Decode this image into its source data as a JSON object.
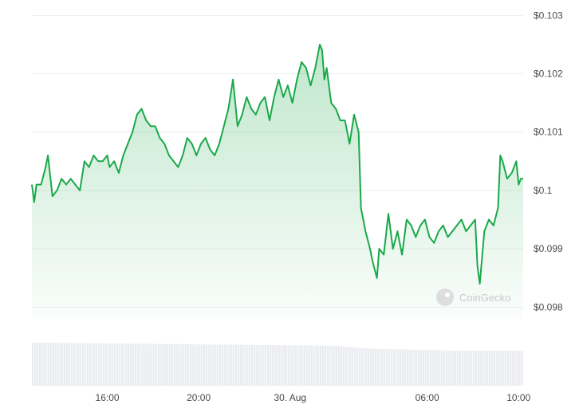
{
  "watermark": "CoinGecko",
  "chart_data": {
    "type": "area",
    "title": "",
    "xlabel": "",
    "ylabel": "",
    "ylim": [
      0.0978,
      0.1031
    ],
    "y_ticks": [
      {
        "value": 0.103,
        "label": "$0.103"
      },
      {
        "value": 0.102,
        "label": "$0.102"
      },
      {
        "value": 0.101,
        "label": "$0.101"
      },
      {
        "value": 0.1,
        "label": "$0.1"
      },
      {
        "value": 0.099,
        "label": "$0.099"
      },
      {
        "value": 0.098,
        "label": "$0.098"
      }
    ],
    "x_range_hours": [
      12.7,
      34.2
    ],
    "x_ticks": [
      {
        "label": "16:00",
        "hour": 16
      },
      {
        "label": "20:00",
        "hour": 20
      },
      {
        "label": "30. Aug",
        "hour": 24
      },
      {
        "label": "06:00",
        "hour": 30
      },
      {
        "label": "10:00",
        "hour": 34
      }
    ],
    "grid": true,
    "colors": {
      "line": "#1ba84a",
      "fill": "#1ba84a",
      "volume": "#eaecf0",
      "grid": "#eeeeee",
      "tick_text": "#4a4a4a"
    },
    "series": [
      {
        "values": [
          [
            12.7,
            0.1001
          ],
          [
            12.8,
            0.0998
          ],
          [
            12.9,
            0.1001
          ],
          [
            13.1,
            0.1001
          ],
          [
            13.3,
            0.1004
          ],
          [
            13.4,
            0.1006
          ],
          [
            13.6,
            0.0999
          ],
          [
            13.8,
            0.1
          ],
          [
            14.0,
            0.1002
          ],
          [
            14.2,
            0.1001
          ],
          [
            14.4,
            0.1002
          ],
          [
            14.6,
            0.1001
          ],
          [
            14.8,
            0.1
          ],
          [
            15.0,
            0.1005
          ],
          [
            15.2,
            0.1004
          ],
          [
            15.4,
            0.1006
          ],
          [
            15.6,
            0.1005
          ],
          [
            15.8,
            0.1005
          ],
          [
            16.0,
            0.1006
          ],
          [
            16.1,
            0.1004
          ],
          [
            16.3,
            0.1005
          ],
          [
            16.5,
            0.1003
          ],
          [
            16.7,
            0.1006
          ],
          [
            16.9,
            0.1008
          ],
          [
            17.1,
            0.101
          ],
          [
            17.3,
            0.1013
          ],
          [
            17.5,
            0.1014
          ],
          [
            17.7,
            0.1012
          ],
          [
            17.9,
            0.1011
          ],
          [
            18.1,
            0.1011
          ],
          [
            18.3,
            0.1009
          ],
          [
            18.5,
            0.1008
          ],
          [
            18.7,
            0.1006
          ],
          [
            18.9,
            0.1005
          ],
          [
            19.1,
            0.1004
          ],
          [
            19.3,
            0.1006
          ],
          [
            19.5,
            0.1009
          ],
          [
            19.7,
            0.1008
          ],
          [
            19.9,
            0.1006
          ],
          [
            20.1,
            0.1008
          ],
          [
            20.3,
            0.1009
          ],
          [
            20.5,
            0.1007
          ],
          [
            20.7,
            0.1006
          ],
          [
            20.9,
            0.1008
          ],
          [
            21.1,
            0.1011
          ],
          [
            21.3,
            0.1014
          ],
          [
            21.5,
            0.1019
          ],
          [
            21.7,
            0.1011
          ],
          [
            21.9,
            0.1013
          ],
          [
            22.1,
            0.1016
          ],
          [
            22.3,
            0.1014
          ],
          [
            22.5,
            0.1013
          ],
          [
            22.7,
            0.1015
          ],
          [
            22.9,
            0.1016
          ],
          [
            23.1,
            0.1012
          ],
          [
            23.3,
            0.1016
          ],
          [
            23.5,
            0.1019
          ],
          [
            23.7,
            0.1016
          ],
          [
            23.9,
            0.1018
          ],
          [
            24.1,
            0.1015
          ],
          [
            24.3,
            0.1019
          ],
          [
            24.5,
            0.1022
          ],
          [
            24.7,
            0.1021
          ],
          [
            24.9,
            0.1018
          ],
          [
            25.1,
            0.1021
          ],
          [
            25.3,
            0.1025
          ],
          [
            25.4,
            0.1024
          ],
          [
            25.5,
            0.1019
          ],
          [
            25.6,
            0.1021
          ],
          [
            25.8,
            0.1015
          ],
          [
            26.0,
            0.1014
          ],
          [
            26.2,
            0.1012
          ],
          [
            26.4,
            0.1012
          ],
          [
            26.6,
            0.1008
          ],
          [
            26.8,
            0.1013
          ],
          [
            27.0,
            0.101
          ],
          [
            27.1,
            0.0997
          ],
          [
            27.3,
            0.0993
          ],
          [
            27.5,
            0.099
          ],
          [
            27.6,
            0.0988
          ],
          [
            27.8,
            0.0985
          ],
          [
            27.9,
            0.099
          ],
          [
            28.1,
            0.0989
          ],
          [
            28.3,
            0.0996
          ],
          [
            28.5,
            0.099
          ],
          [
            28.7,
            0.0993
          ],
          [
            28.9,
            0.0989
          ],
          [
            29.1,
            0.0995
          ],
          [
            29.3,
            0.0994
          ],
          [
            29.5,
            0.0992
          ],
          [
            29.7,
            0.0994
          ],
          [
            29.9,
            0.0995
          ],
          [
            30.1,
            0.0992
          ],
          [
            30.3,
            0.0991
          ],
          [
            30.5,
            0.0993
          ],
          [
            30.7,
            0.0994
          ],
          [
            30.9,
            0.0992
          ],
          [
            31.1,
            0.0993
          ],
          [
            31.3,
            0.0994
          ],
          [
            31.5,
            0.0995
          ],
          [
            31.7,
            0.0993
          ],
          [
            31.9,
            0.0994
          ],
          [
            32.1,
            0.0995
          ],
          [
            32.2,
            0.0987
          ],
          [
            32.3,
            0.0984
          ],
          [
            32.5,
            0.0993
          ],
          [
            32.7,
            0.0995
          ],
          [
            32.9,
            0.0994
          ],
          [
            33.1,
            0.0997
          ],
          [
            33.2,
            0.1006
          ],
          [
            33.3,
            0.1005
          ],
          [
            33.5,
            0.1002
          ],
          [
            33.7,
            0.1003
          ],
          [
            33.9,
            0.1005
          ],
          [
            34.0,
            0.1001
          ],
          [
            34.1,
            0.1002
          ],
          [
            34.2,
            0.1002
          ]
        ]
      }
    ],
    "volume_relative": [
      [
        12.7,
        0.92
      ],
      [
        14.0,
        0.91
      ],
      [
        16.0,
        0.9
      ],
      [
        18.0,
        0.89
      ],
      [
        20.0,
        0.88
      ],
      [
        22.0,
        0.87
      ],
      [
        24.0,
        0.86
      ],
      [
        26.0,
        0.85
      ],
      [
        27.0,
        0.8
      ],
      [
        28.0,
        0.78
      ],
      [
        29.0,
        0.77
      ],
      [
        30.0,
        0.76
      ],
      [
        31.0,
        0.75
      ],
      [
        32.0,
        0.75
      ],
      [
        33.0,
        0.75
      ],
      [
        34.2,
        0.74
      ]
    ]
  }
}
